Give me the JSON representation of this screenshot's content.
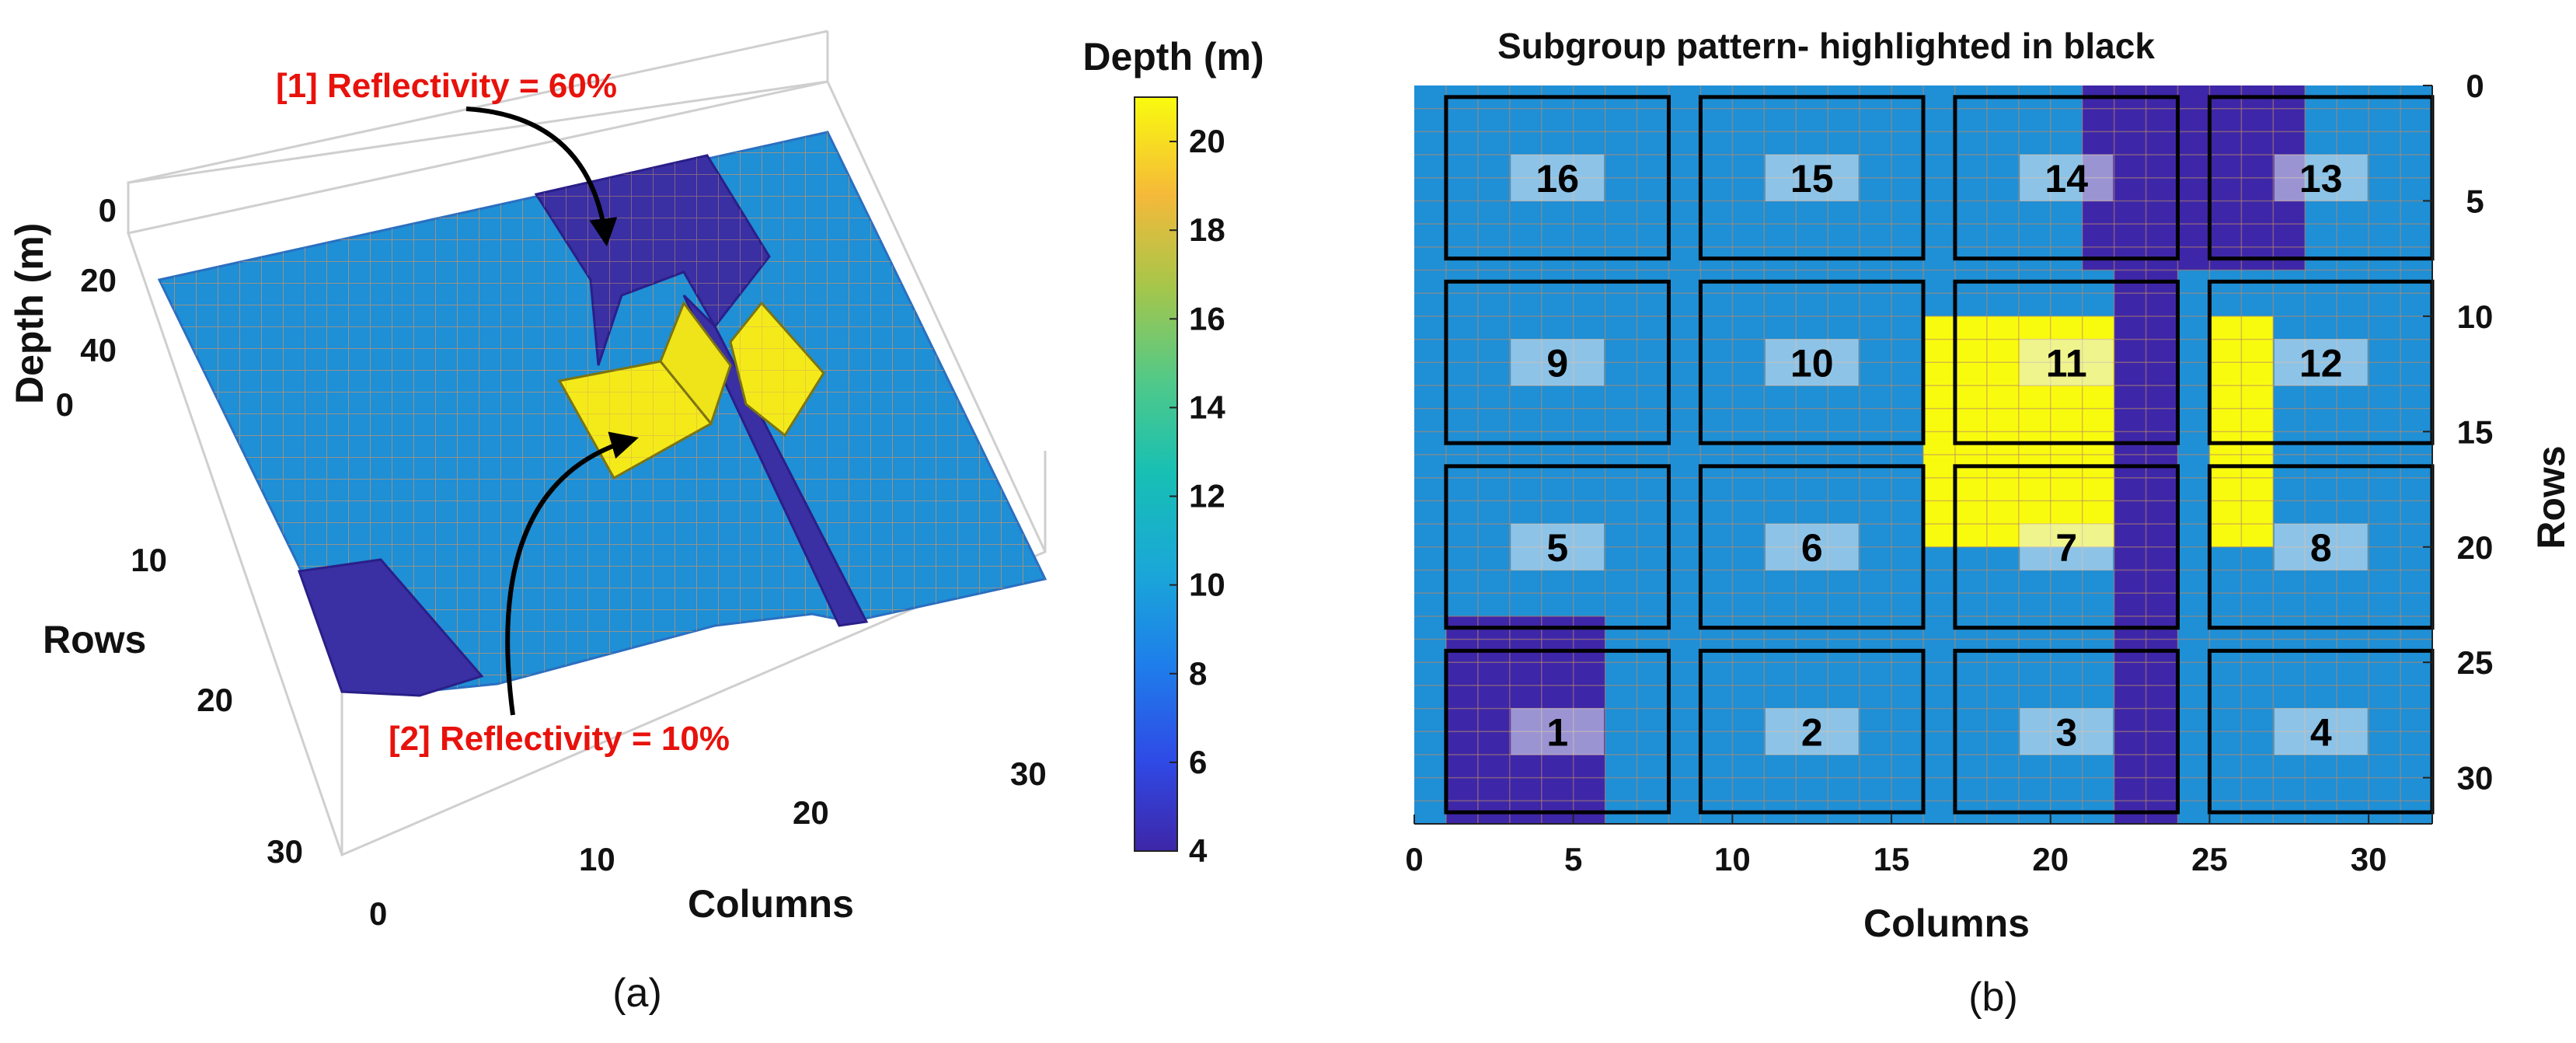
{
  "chart_data": [
    {
      "type": "surface3d",
      "panel_label": "(a)",
      "title": "",
      "xlabel": "Columns",
      "ylabel": "Rows",
      "zlabel": "Depth (m)",
      "xlim": [
        0,
        32
      ],
      "ylim": [
        0,
        32
      ],
      "zlim": [
        0,
        40
      ],
      "x_ticks": [
        "0",
        "10",
        "20",
        "30"
      ],
      "y_ticks": [
        "0",
        "10",
        "20",
        "30"
      ],
      "z_ticks": [
        "0",
        "20",
        "40"
      ],
      "annotations": [
        {
          "text": "[1] Reflectivity = 60%",
          "region": "deep canyon near rows 0-10"
        },
        {
          "text": "[2] Reflectivity = 10%",
          "region": "shallow yellow plateau near rows 10-20"
        }
      ]
    },
    {
      "type": "colorbar",
      "title": "Depth (m)",
      "range": [
        4,
        21
      ],
      "ticks": [
        "4",
        "6",
        "8",
        "10",
        "12",
        "14",
        "16",
        "18",
        "20"
      ],
      "colors": [
        "#3e26a8",
        "#2f4ae6",
        "#1e7fea",
        "#1aa7d8",
        "#17bfb4",
        "#4fc98a",
        "#a7c64a",
        "#f5b93a",
        "#f9fb0e"
      ]
    },
    {
      "type": "heatmap",
      "panel_label": "(b)",
      "title": "Subgroup pattern- highlighted in black",
      "xlabel": "Columns",
      "ylabel": "Rows",
      "xlim": [
        0,
        32
      ],
      "ylim": [
        0,
        32
      ],
      "x_ticks": [
        "0",
        "5",
        "10",
        "15",
        "20",
        "25",
        "30"
      ],
      "y_ticks": [
        "0",
        "5",
        "10",
        "15",
        "20",
        "25",
        "30"
      ],
      "subgroups": [
        {
          "label": "16",
          "cols": [
            1,
            8
          ],
          "rows": [
            0.5,
            7.5
          ]
        },
        {
          "label": "15",
          "cols": [
            9,
            16
          ],
          "rows": [
            0.5,
            7.5
          ]
        },
        {
          "label": "14",
          "cols": [
            17,
            24
          ],
          "rows": [
            0.5,
            7.5
          ]
        },
        {
          "label": "13",
          "cols": [
            25,
            32
          ],
          "rows": [
            0.5,
            7.5
          ]
        },
        {
          "label": "9",
          "cols": [
            1,
            8
          ],
          "rows": [
            8.5,
            15.5
          ]
        },
        {
          "label": "10",
          "cols": [
            9,
            16
          ],
          "rows": [
            8.5,
            15.5
          ]
        },
        {
          "label": "11",
          "cols": [
            17,
            24
          ],
          "rows": [
            8.5,
            15.5
          ]
        },
        {
          "label": "12",
          "cols": [
            25,
            32
          ],
          "rows": [
            8.5,
            15.5
          ]
        },
        {
          "label": "5",
          "cols": [
            1,
            8
          ],
          "rows": [
            16.5,
            23.5
          ]
        },
        {
          "label": "6",
          "cols": [
            9,
            16
          ],
          "rows": [
            16.5,
            23.5
          ]
        },
        {
          "label": "7",
          "cols": [
            17,
            24
          ],
          "rows": [
            16.5,
            23.5
          ]
        },
        {
          "label": "8",
          "cols": [
            25,
            32
          ],
          "rows": [
            16.5,
            23.5
          ]
        },
        {
          "label": "1",
          "cols": [
            1,
            8
          ],
          "rows": [
            24.5,
            31.5
          ]
        },
        {
          "label": "2",
          "cols": [
            9,
            16
          ],
          "rows": [
            24.5,
            31.5
          ]
        },
        {
          "label": "3",
          "cols": [
            17,
            24
          ],
          "rows": [
            24.5,
            31.5
          ]
        },
        {
          "label": "4",
          "cols": [
            25,
            32
          ],
          "rows": [
            24.5,
            31.5
          ]
        }
      ],
      "depth_regions": [
        {
          "name": "background",
          "depth": 8.5,
          "cols": [
            0,
            32
          ],
          "rows": [
            0,
            32
          ]
        },
        {
          "name": "deep-channel-top",
          "depth": 4,
          "cols": [
            21,
            28
          ],
          "rows": [
            0,
            8
          ]
        },
        {
          "name": "deep-channel-vertical",
          "depth": 4,
          "cols": [
            22,
            24
          ],
          "rows": [
            0,
            32
          ]
        },
        {
          "name": "deep-corner",
          "depth": 4,
          "cols": [
            1,
            6
          ],
          "rows": [
            23,
            32
          ]
        },
        {
          "name": "shallow-plateau-left",
          "depth": 21,
          "cols": [
            16,
            22
          ],
          "rows": [
            10,
            20
          ]
        },
        {
          "name": "shallow-plateau-right",
          "depth": 21,
          "cols": [
            25,
            27
          ],
          "rows": [
            10,
            20
          ]
        }
      ]
    }
  ]
}
